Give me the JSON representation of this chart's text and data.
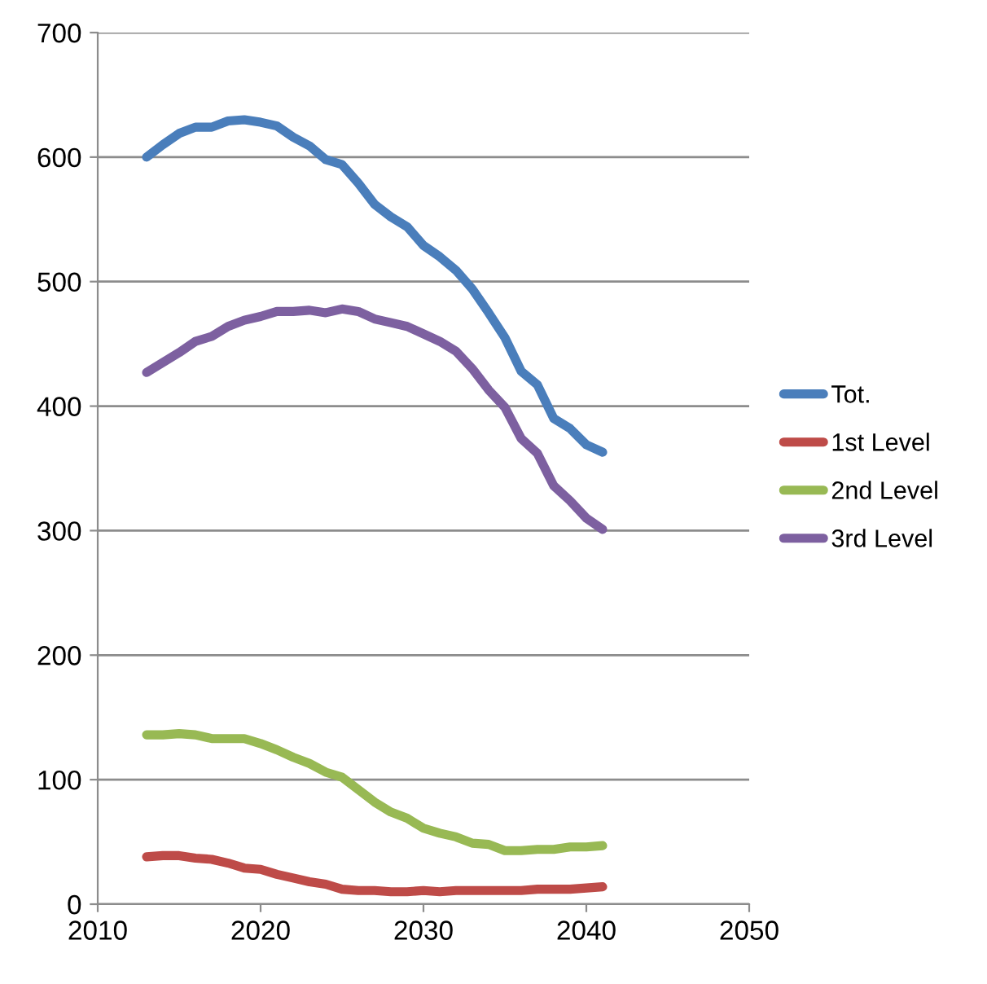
{
  "chart_data": {
    "type": "line",
    "x": [
      2013,
      2014,
      2015,
      2016,
      2017,
      2018,
      2019,
      2020,
      2021,
      2022,
      2023,
      2024,
      2025,
      2026,
      2027,
      2028,
      2029,
      2030,
      2031,
      2032,
      2033,
      2034,
      2035,
      2036,
      2037,
      2038,
      2039,
      2040,
      2041
    ],
    "series": [
      {
        "name": "Tot.",
        "color": "#4a7ebb",
        "values": [
          600,
          610,
          619,
          624,
          624,
          629,
          630,
          628,
          625,
          616,
          609,
          598,
          594,
          579,
          562,
          552,
          544,
          529,
          520,
          509,
          494,
          475,
          455,
          428,
          417,
          390,
          382,
          369,
          363
        ]
      },
      {
        "name": "1st Level",
        "color": "#be4b48",
        "values": [
          38,
          39,
          39,
          37,
          36,
          33,
          29,
          28,
          24,
          21,
          18,
          16,
          12,
          11,
          11,
          10,
          10,
          11,
          10,
          11,
          11,
          11,
          11,
          11,
          12,
          12,
          12,
          13,
          14
        ]
      },
      {
        "name": "2nd Level",
        "color": "#98b954",
        "values": [
          136,
          136,
          137,
          136,
          133,
          133,
          133,
          129,
          124,
          118,
          113,
          106,
          102,
          92,
          82,
          74,
          69,
          61,
          57,
          54,
          49,
          48,
          43,
          43,
          44,
          44,
          46,
          46,
          47
        ]
      },
      {
        "name": "3rd Level",
        "color": "#7d60a0",
        "values": [
          427,
          435,
          443,
          452,
          456,
          464,
          469,
          472,
          476,
          476,
          477,
          475,
          478,
          476,
          470,
          467,
          464,
          458,
          452,
          444,
          430,
          413,
          399,
          374,
          362,
          336,
          324,
          310,
          301
        ]
      }
    ],
    "xlim": [
      2010,
      2050
    ],
    "xticks": [
      2010,
      2020,
      2030,
      2040,
      2050
    ],
    "ylim": [
      0,
      700
    ],
    "yticks": [
      0,
      100,
      200,
      300,
      400,
      500,
      600,
      700
    ],
    "grid": "y",
    "legend": "right",
    "marker": "none",
    "line_style": "solid"
  }
}
